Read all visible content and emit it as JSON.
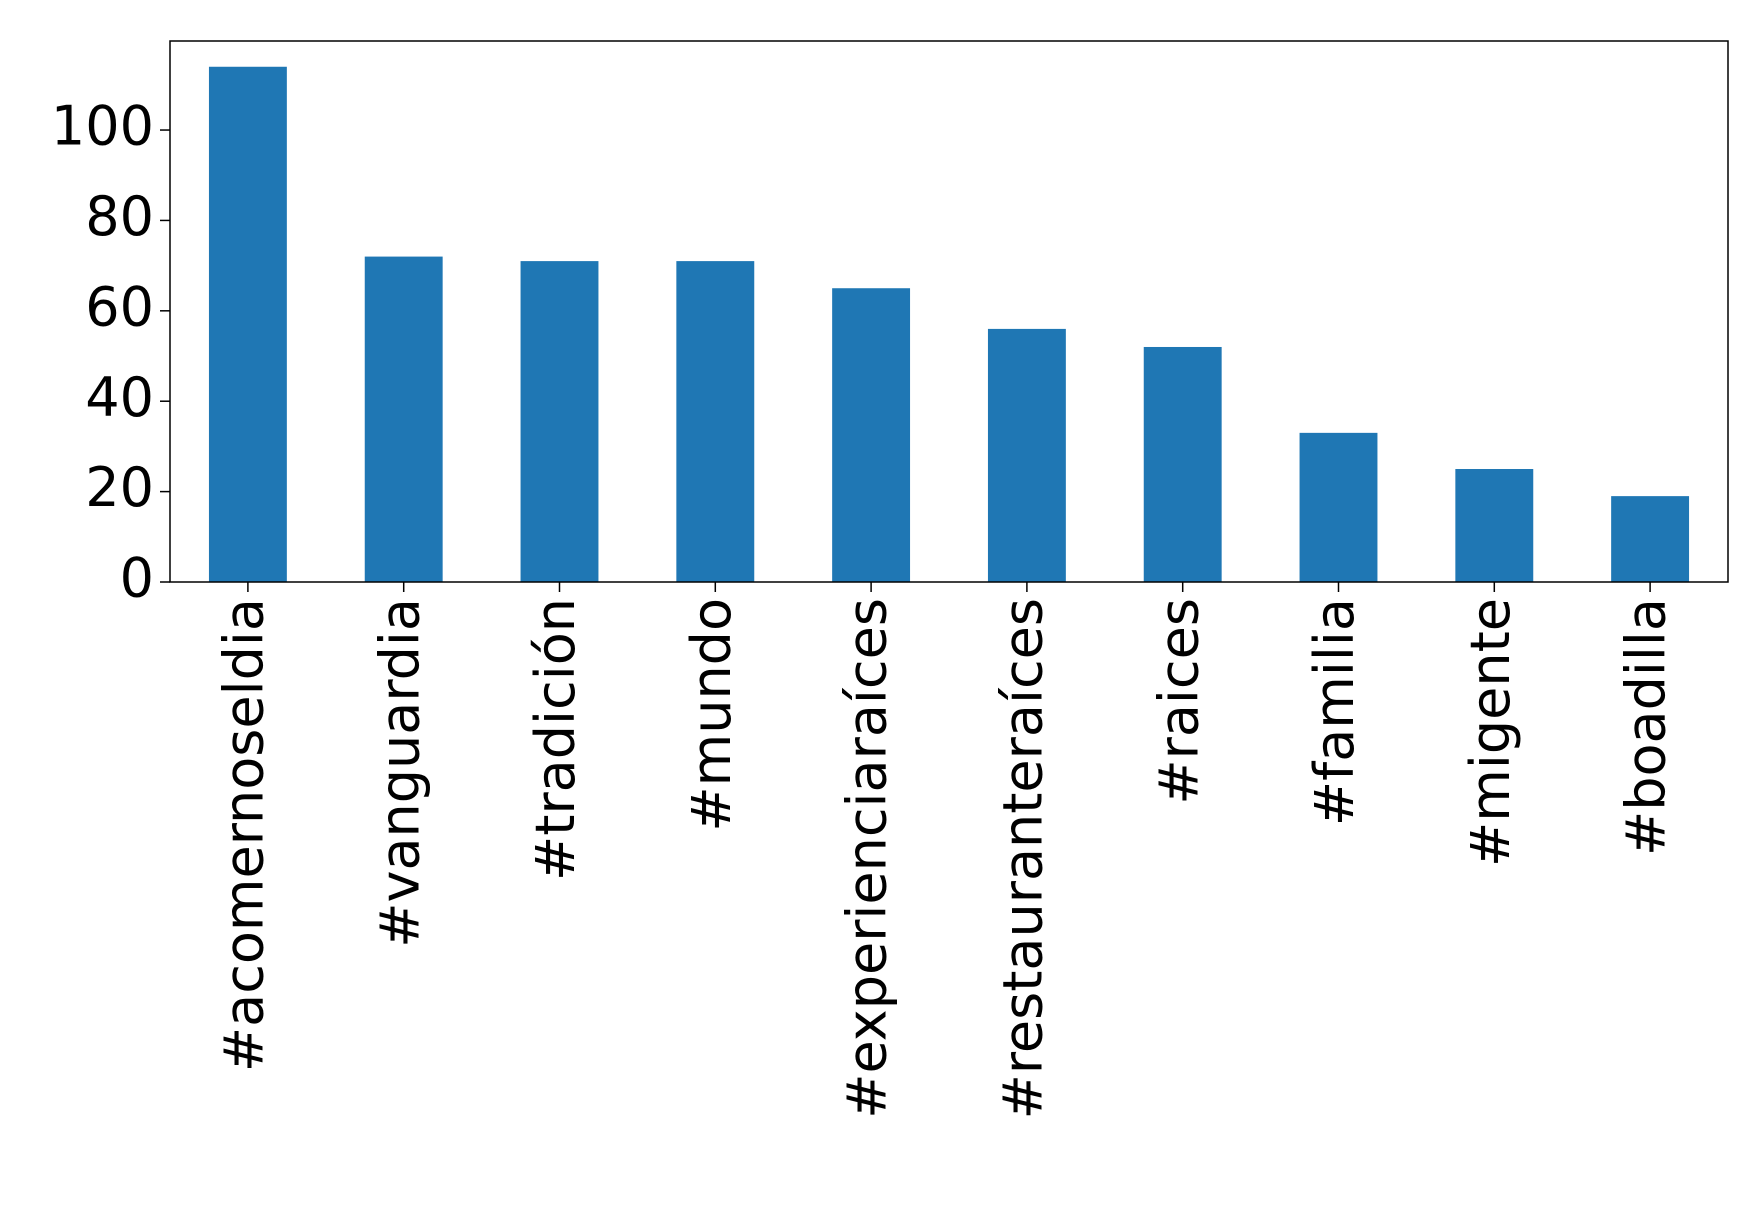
{
  "chart_data": {
    "type": "bar",
    "categories": [
      "#acomernoseldia",
      "#vanguardia",
      "#tradición",
      "#mundo",
      "#experienciaraíces",
      "#restauranteraíces",
      "#raices",
      "#familia",
      "#migente",
      "#boadilla"
    ],
    "values": [
      114,
      72,
      71,
      71,
      65,
      56,
      52,
      33,
      25,
      19
    ],
    "color": "#1f77b4",
    "ylim": [
      0,
      119.7
    ],
    "yticks": [
      0,
      20,
      40,
      60,
      80,
      100
    ],
    "grid": false
  }
}
